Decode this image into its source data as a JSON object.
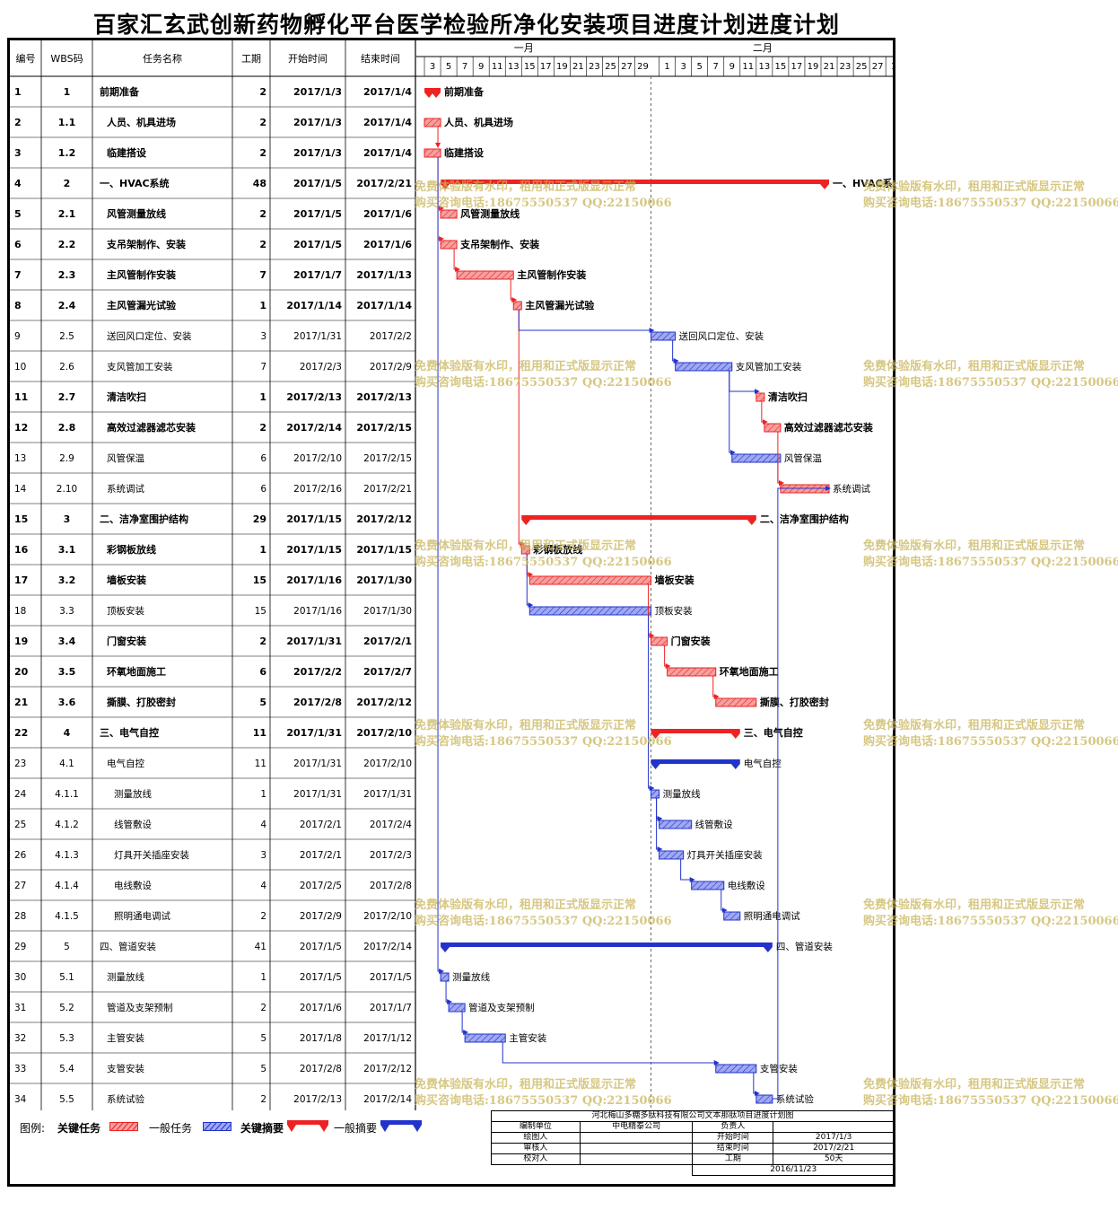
{
  "title": "百家汇玄武创新药物孵化平台医学检验所净化安装项目进度计划进度计划",
  "columns": {
    "num": "编号",
    "wbs": "WBS码",
    "name": "任务名称",
    "duration": "工期",
    "start": "开始时间",
    "end": "结束时间"
  },
  "timeline": {
    "months": [
      {
        "label": "一月",
        "start": "2017-01-03"
      },
      {
        "label": "二月",
        "start": "2017-02-01"
      }
    ],
    "day_ticks": [
      "3",
      "5",
      "7",
      "9",
      "11",
      "13",
      "15",
      "17",
      "19",
      "21",
      "23",
      "25",
      "27",
      "29",
      "1",
      "3",
      "5",
      "7",
      "9",
      "11",
      "13",
      "15",
      "17",
      "19",
      "21",
      "23",
      "25",
      "27",
      "1"
    ],
    "scale_start": "2017-01-02",
    "scale_end": "2017-03-03"
  },
  "chart_data": {
    "type": "gantt",
    "title": "百家汇玄武创新药物孵化平台医学检验所净化安装项目进度计划进度计划",
    "x_axis": "date",
    "tasks": [
      {
        "num": "1",
        "wbs": "1",
        "name": "前期准备",
        "duration": "2",
        "start": "2017/1/3",
        "end": "2017/1/4",
        "kind": "critical_summary",
        "bold": true,
        "indent": 0
      },
      {
        "num": "2",
        "wbs": "1.1",
        "name": "人员、机具进场",
        "duration": "2",
        "start": "2017/1/3",
        "end": "2017/1/4",
        "kind": "critical",
        "bold": true,
        "indent": 1
      },
      {
        "num": "3",
        "wbs": "1.2",
        "name": "临建搭设",
        "duration": "2",
        "start": "2017/1/3",
        "end": "2017/1/4",
        "kind": "critical",
        "bold": true,
        "indent": 1
      },
      {
        "num": "4",
        "wbs": "2",
        "name": "一、HVAC系统",
        "duration": "48",
        "start": "2017/1/5",
        "end": "2017/2/21",
        "kind": "critical_summary",
        "bold": true,
        "indent": 0
      },
      {
        "num": "5",
        "wbs": "2.1",
        "name": "风管测量放线",
        "duration": "2",
        "start": "2017/1/5",
        "end": "2017/1/6",
        "kind": "critical",
        "bold": true,
        "indent": 1
      },
      {
        "num": "6",
        "wbs": "2.2",
        "name": "支吊架制作、安装",
        "duration": "2",
        "start": "2017/1/5",
        "end": "2017/1/6",
        "kind": "critical",
        "bold": true,
        "indent": 1
      },
      {
        "num": "7",
        "wbs": "2.3",
        "name": "主风管制作安装",
        "duration": "7",
        "start": "2017/1/7",
        "end": "2017/1/13",
        "kind": "critical",
        "bold": true,
        "indent": 1
      },
      {
        "num": "8",
        "wbs": "2.4",
        "name": "主风管漏光试验",
        "duration": "1",
        "start": "2017/1/14",
        "end": "2017/1/14",
        "kind": "critical",
        "bold": true,
        "indent": 1
      },
      {
        "num": "9",
        "wbs": "2.5",
        "name": "送回风口定位、安装",
        "duration": "3",
        "start": "2017/1/31",
        "end": "2017/2/2",
        "kind": "normal",
        "bold": false,
        "indent": 1
      },
      {
        "num": "10",
        "wbs": "2.6",
        "name": "支风管加工安装",
        "duration": "7",
        "start": "2017/2/3",
        "end": "2017/2/9",
        "kind": "normal",
        "bold": false,
        "indent": 1
      },
      {
        "num": "11",
        "wbs": "2.7",
        "name": "清洁吹扫",
        "duration": "1",
        "start": "2017/2/13",
        "end": "2017/2/13",
        "kind": "critical",
        "bold": true,
        "indent": 1
      },
      {
        "num": "12",
        "wbs": "2.8",
        "name": "高效过滤器滤芯安装",
        "duration": "2",
        "start": "2017/2/14",
        "end": "2017/2/15",
        "kind": "critical",
        "bold": true,
        "indent": 1
      },
      {
        "num": "13",
        "wbs": "2.9",
        "name": "风管保温",
        "duration": "6",
        "start": "2017/2/10",
        "end": "2017/2/15",
        "kind": "normal",
        "bold": false,
        "indent": 1
      },
      {
        "num": "14",
        "wbs": "2.10",
        "name": "系统调试",
        "duration": "6",
        "start": "2017/2/16",
        "end": "2017/2/21",
        "kind": "critical",
        "bold": false,
        "indent": 1
      },
      {
        "num": "15",
        "wbs": "3",
        "name": "二、洁净室围护结构",
        "duration": "29",
        "start": "2017/1/15",
        "end": "2017/2/12",
        "kind": "critical_summary",
        "bold": true,
        "indent": 0
      },
      {
        "num": "16",
        "wbs": "3.1",
        "name": "彩钢板放线",
        "duration": "1",
        "start": "2017/1/15",
        "end": "2017/1/15",
        "kind": "critical",
        "bold": true,
        "indent": 1
      },
      {
        "num": "17",
        "wbs": "3.2",
        "name": "墙板安装",
        "duration": "15",
        "start": "2017/1/16",
        "end": "2017/1/30",
        "kind": "critical",
        "bold": true,
        "indent": 1
      },
      {
        "num": "18",
        "wbs": "3.3",
        "name": "顶板安装",
        "duration": "15",
        "start": "2017/1/16",
        "end": "2017/1/30",
        "kind": "normal",
        "bold": false,
        "indent": 1
      },
      {
        "num": "19",
        "wbs": "3.4",
        "name": "门窗安装",
        "duration": "2",
        "start": "2017/1/31",
        "end": "2017/2/1",
        "kind": "critical",
        "bold": true,
        "indent": 1
      },
      {
        "num": "20",
        "wbs": "3.5",
        "name": "环氧地面施工",
        "duration": "6",
        "start": "2017/2/2",
        "end": "2017/2/7",
        "kind": "critical",
        "bold": true,
        "indent": 1
      },
      {
        "num": "21",
        "wbs": "3.6",
        "name": "撕膜、打胶密封",
        "duration": "5",
        "start": "2017/2/8",
        "end": "2017/2/12",
        "kind": "critical",
        "bold": true,
        "indent": 1
      },
      {
        "num": "22",
        "wbs": "4",
        "name": "三、电气自控",
        "duration": "11",
        "start": "2017/1/31",
        "end": "2017/2/10",
        "kind": "critical_summary",
        "bold": true,
        "indent": 0
      },
      {
        "num": "23",
        "wbs": "4.1",
        "name": "电气自控",
        "duration": "11",
        "start": "2017/1/31",
        "end": "2017/2/10",
        "kind": "summary",
        "bold": false,
        "indent": 1
      },
      {
        "num": "24",
        "wbs": "4.1.1",
        "name": "测量放线",
        "duration": "1",
        "start": "2017/1/31",
        "end": "2017/1/31",
        "kind": "normal",
        "bold": false,
        "indent": 2
      },
      {
        "num": "25",
        "wbs": "4.1.2",
        "name": "线管敷设",
        "duration": "4",
        "start": "2017/2/1",
        "end": "2017/2/4",
        "kind": "normal",
        "bold": false,
        "indent": 2
      },
      {
        "num": "26",
        "wbs": "4.1.3",
        "name": "灯具开关插座安装",
        "duration": "3",
        "start": "2017/2/1",
        "end": "2017/2/3",
        "kind": "normal",
        "bold": false,
        "indent": 2
      },
      {
        "num": "27",
        "wbs": "4.1.4",
        "name": "电线敷设",
        "duration": "4",
        "start": "2017/2/5",
        "end": "2017/2/8",
        "kind": "normal",
        "bold": false,
        "indent": 2
      },
      {
        "num": "28",
        "wbs": "4.1.5",
        "name": "照明通电调试",
        "duration": "2",
        "start": "2017/2/9",
        "end": "2017/2/10",
        "kind": "normal",
        "bold": false,
        "indent": 2
      },
      {
        "num": "29",
        "wbs": "5",
        "name": "四、管道安装",
        "duration": "41",
        "start": "2017/1/5",
        "end": "2017/2/14",
        "kind": "summary",
        "bold": false,
        "indent": 0
      },
      {
        "num": "30",
        "wbs": "5.1",
        "name": "测量放线",
        "duration": "1",
        "start": "2017/1/5",
        "end": "2017/1/5",
        "kind": "normal",
        "bold": false,
        "indent": 1
      },
      {
        "num": "31",
        "wbs": "5.2",
        "name": "管道及支架预制",
        "duration": "2",
        "start": "2017/1/6",
        "end": "2017/1/7",
        "kind": "normal",
        "bold": false,
        "indent": 1
      },
      {
        "num": "32",
        "wbs": "5.3",
        "name": "主管安装",
        "duration": "5",
        "start": "2017/1/8",
        "end": "2017/1/12",
        "kind": "normal",
        "bold": false,
        "indent": 1
      },
      {
        "num": "33",
        "wbs": "5.4",
        "name": "支管安装",
        "duration": "5",
        "start": "2017/2/8",
        "end": "2017/2/12",
        "kind": "normal",
        "bold": false,
        "indent": 1
      },
      {
        "num": "34",
        "wbs": "5.5",
        "name": "系统试验",
        "duration": "2",
        "start": "2017/2/13",
        "end": "2017/2/14",
        "kind": "normal",
        "bold": false,
        "indent": 1
      }
    ],
    "links": [
      [
        "2",
        "3"
      ],
      [
        "3",
        "5"
      ],
      [
        "3",
        "6"
      ],
      [
        "6",
        "7"
      ],
      [
        "7",
        "8"
      ],
      [
        "8",
        "16"
      ],
      [
        "8",
        "9"
      ],
      [
        "16",
        "17"
      ],
      [
        "16",
        "18"
      ],
      [
        "17",
        "19"
      ],
      [
        "19",
        "20"
      ],
      [
        "20",
        "21"
      ],
      [
        "9",
        "10"
      ],
      [
        "10",
        "11"
      ],
      [
        "10",
        "13"
      ],
      [
        "11",
        "12"
      ],
      [
        "13",
        "14"
      ],
      [
        "18",
        "24"
      ],
      [
        "24",
        "25"
      ],
      [
        "24",
        "26"
      ],
      [
        "26",
        "27"
      ],
      [
        "27",
        "28"
      ],
      [
        "3",
        "30"
      ],
      [
        "30",
        "31"
      ],
      [
        "31",
        "32"
      ],
      [
        "32",
        "33"
      ],
      [
        "33",
        "34"
      ],
      [
        "34",
        "14"
      ],
      [
        "12",
        "14"
      ]
    ],
    "colors": {
      "critical": "#ee2222",
      "normal": "#2233cc",
      "critical_hatch": "#f4a0a0",
      "normal_hatch": "#a0a8f0",
      "today_line": "#000000"
    }
  },
  "watermark": {
    "line1": "免费体验版有水印，租用和正式版显示正常",
    "line2": "购买咨询电话:18675550537 QQ:22150066"
  },
  "legend": {
    "label": "图例:",
    "critical_task": "关键任务",
    "normal_task": "一般任务",
    "critical_summary": "关键摘要",
    "normal_summary": "一般摘要"
  },
  "info": {
    "company": "河北梅山多糖多肽科技有限公司文本那肽项目进度计划图",
    "unit_label": "编制单位",
    "unit_value": "中电精泰公司",
    "owner_label": "负责人",
    "drawer_label": "绘图人",
    "start_label": "开始时间",
    "start_value": "2017/1/3",
    "reviewer_label": "审核人",
    "end_label": "结束时间",
    "end_value": "2017/2/21",
    "checker_label": "校对人",
    "duration_label": "工期",
    "duration_value": "50天",
    "date_value": "2016/11/23"
  }
}
